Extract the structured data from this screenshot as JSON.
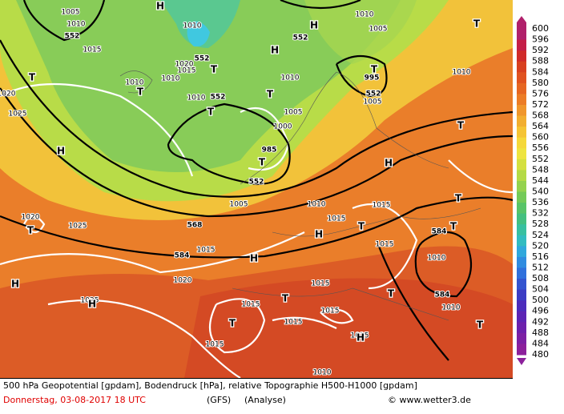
{
  "map": {
    "labels": [
      "1005",
      "1010",
      "552",
      "1015",
      "1010",
      "552",
      "1020",
      "1015",
      "1010",
      "1010",
      "1010",
      "552",
      "552",
      "1010",
      "1005",
      "1010",
      "1005",
      "1000",
      "985",
      "552",
      "1005",
      "1010",
      "1015",
      "1015",
      "568",
      "1015",
      "584",
      "1010",
      "584",
      "1015",
      "1020",
      "1015",
      "1015",
      "1015",
      "1015",
      "1015",
      "1015",
      "584",
      "1010",
      "995",
      "552",
      "1005",
      "1010",
      "1020",
      "1025",
      "1025",
      "1020",
      "1010",
      "1025"
    ],
    "symbols": [
      "H",
      "H",
      "H",
      "T",
      "T",
      "T",
      "T",
      "T",
      "T",
      "T",
      "T",
      "H",
      "T",
      "H",
      "T",
      "T",
      "H",
      "H",
      "T",
      "H",
      "H",
      "T",
      "T",
      "T",
      "T",
      "T",
      "H"
    ]
  },
  "colorbar": {
    "values": [
      600,
      596,
      592,
      588,
      584,
      580,
      576,
      572,
      568,
      564,
      560,
      556,
      552,
      548,
      544,
      540,
      536,
      532,
      528,
      524,
      520,
      516,
      512,
      508,
      504,
      500,
      496,
      492,
      488,
      484,
      480
    ],
    "colors": [
      "#b0206b",
      "#c41e48",
      "#d02a2a",
      "#d84020",
      "#e05220",
      "#e66622",
      "#ec7c26",
      "#f0962c",
      "#f2ae30",
      "#f5c434",
      "#f5d83a",
      "#eee440",
      "#d4e040",
      "#b4da46",
      "#94d24e",
      "#74ca58",
      "#58c468",
      "#44c080",
      "#38c0a0",
      "#32bcc0",
      "#30a8dc",
      "#308ce0",
      "#3070dc",
      "#3454d0",
      "#3c3cc4",
      "#4c2cbc",
      "#5c24b4",
      "#6c20ac",
      "#7c20a4",
      "#8c209c"
    ]
  },
  "footer": {
    "line1": "500 hPa Geopotential [gpdam], Bodendruck [hPa], relative Topographie H500-H1000 [gpdam]",
    "date": "Donnerstag, 03-08-2017  18 UTC",
    "model": "(GFS)",
    "run": "(Analyse)",
    "credit": "© www.wetter3.de"
  }
}
